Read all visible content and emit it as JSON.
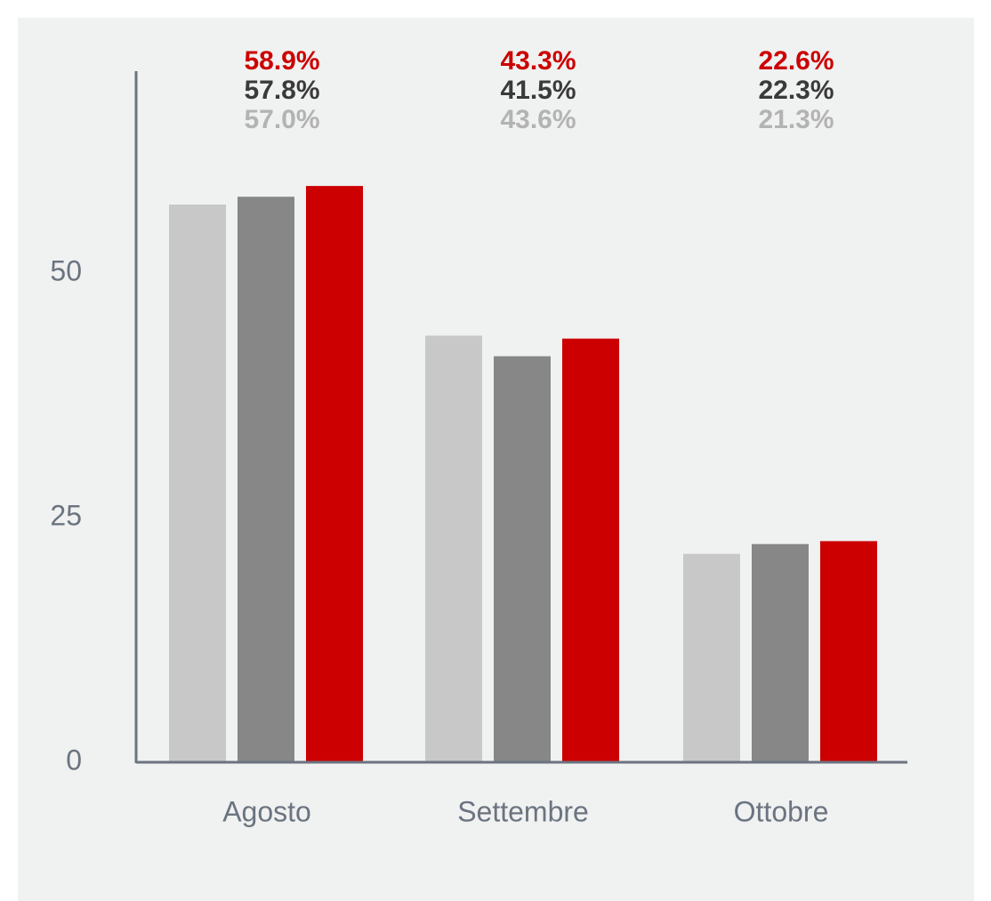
{
  "chart_data": {
    "type": "bar",
    "categories": [
      "Agosto",
      "Settembre",
      "Ottobre"
    ],
    "series": [
      {
        "color": "#c8c8c8",
        "label_color": "#b3b3b3",
        "values": [
          57.0,
          43.6,
          21.3
        ],
        "value_labels": [
          "57.0%",
          "43.6%",
          "21.3%"
        ]
      },
      {
        "color": "#878787",
        "label_color": "#3a3a3a",
        "values": [
          57.8,
          41.5,
          22.3
        ],
        "value_labels": [
          "57.8%",
          "41.5%",
          "22.3%"
        ]
      },
      {
        "color": "#cc0000",
        "label_color": "#cc0000",
        "values": [
          58.9,
          43.3,
          22.6
        ],
        "value_labels": [
          "58.9%",
          "43.3%",
          "22.6%"
        ]
      }
    ],
    "ylim": [
      0,
      70
    ],
    "yticks": [
      0,
      25,
      50
    ],
    "grid": false
  }
}
